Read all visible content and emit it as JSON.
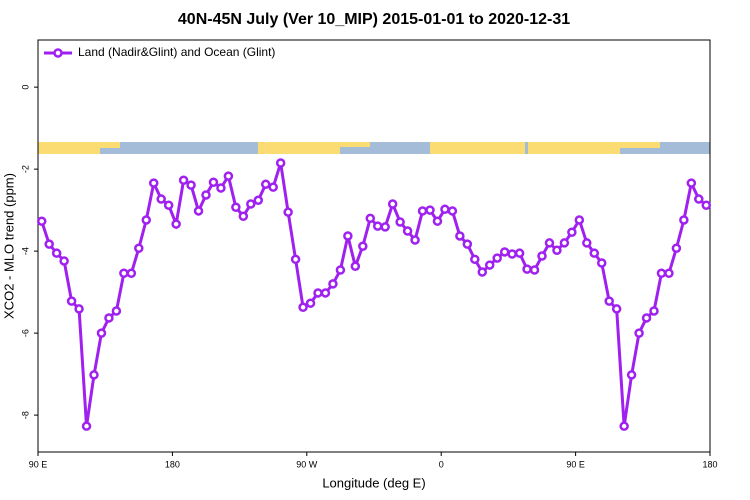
{
  "chart_data": {
    "type": "line",
    "title": "40N-45N July (Ver 10_MIP)   2015-01-01 to 2020-12-31",
    "x_label": "Longitude (deg E)",
    "y_label": "XCO2 - MLO trend (ppm)",
    "x": [
      92.5,
      97.5,
      102.5,
      107.5,
      112.5,
      117.5,
      122.5,
      127.5,
      132.5,
      137.5,
      142.5,
      147.5,
      152.5,
      157.5,
      162.5,
      167.5,
      172.5,
      177.5,
      182.5,
      187.5,
      192.5,
      197.5,
      202.5,
      207.5,
      212.5,
      217.5,
      222.5,
      227.5,
      232.5,
      237.5,
      242.5,
      247.5,
      252.5,
      257.5,
      262.5,
      267.5,
      272.5,
      277.5,
      282.5,
      287.5,
      292.5,
      297.5,
      302.5,
      307.5,
      312.5,
      317.5,
      322.5,
      327.5,
      332.5,
      337.5,
      342.5,
      347.5,
      352.5,
      357.5,
      362.5,
      367.5,
      372.5,
      377.5,
      382.5,
      387.5,
      392.5,
      397.5,
      402.5,
      407.5,
      412.5,
      417.5,
      422.5,
      427.5,
      432.5,
      437.5,
      442.5,
      447.5,
      452.5,
      457.5,
      462.5,
      467.5,
      472.5,
      477.5,
      482.5,
      487.5,
      492.5,
      497.5,
      502.5,
      507.5,
      512.5,
      517.5,
      522.5,
      527.5,
      532.5,
      537.5
    ],
    "series": [
      {
        "name": "Land (Nadir&Glint) and Ocean (Glint)",
        "color": "#a020f0",
        "values": [
          -3.27,
          -3.83,
          -4.05,
          -4.24,
          -5.22,
          -5.41,
          -8.27,
          -7.02,
          -6.0,
          -5.63,
          -5.46,
          -4.54,
          -4.54,
          -3.93,
          -3.24,
          -2.34,
          -2.73,
          -2.88,
          -3.34,
          -2.27,
          -2.39,
          -3.02,
          -2.63,
          -2.32,
          -2.46,
          -2.17,
          -2.93,
          -3.15,
          -2.85,
          -2.76,
          -2.37,
          -2.44,
          -1.85,
          -3.05,
          -4.2,
          -5.37,
          -5.27,
          -5.02,
          -5.02,
          -4.8,
          -4.46,
          -3.63,
          -4.37,
          -3.88,
          -3.2,
          -3.39,
          -3.41,
          -2.85,
          -3.29,
          -3.51,
          -3.73,
          -3.02,
          -3.0,
          -3.27,
          -2.98,
          -3.02,
          -3.63,
          -3.83,
          -4.2,
          -4.51,
          -4.34,
          -4.17,
          -4.02,
          -4.07,
          -4.05,
          -4.44,
          -4.46,
          -4.12,
          -3.8,
          -3.98,
          -3.8,
          -3.54,
          -3.24,
          -3.8,
          -4.05,
          -4.29,
          -5.22,
          -5.41,
          -8.27,
          -7.02,
          -6.0,
          -5.63,
          -5.46,
          -4.54,
          -4.54,
          -3.93,
          -3.24,
          -2.34,
          -2.73,
          -2.88
        ]
      }
    ],
    "xlim": [
      90,
      540
    ],
    "xticks": [
      {
        "value": 90,
        "label": "90 E"
      },
      180,
      {
        "value": 270,
        "label": "90 W"
      },
      {
        "value": 360,
        "label": "0"
      },
      {
        "value": 450,
        "label": "90 E"
      },
      {
        "value": 540,
        "label": "180"
      }
    ],
    "ylim": [
      -8.9,
      1.15
    ],
    "yticks": [
      -8,
      -6,
      -4,
      -2,
      0
    ],
    "legend_position": "top-left"
  }
}
